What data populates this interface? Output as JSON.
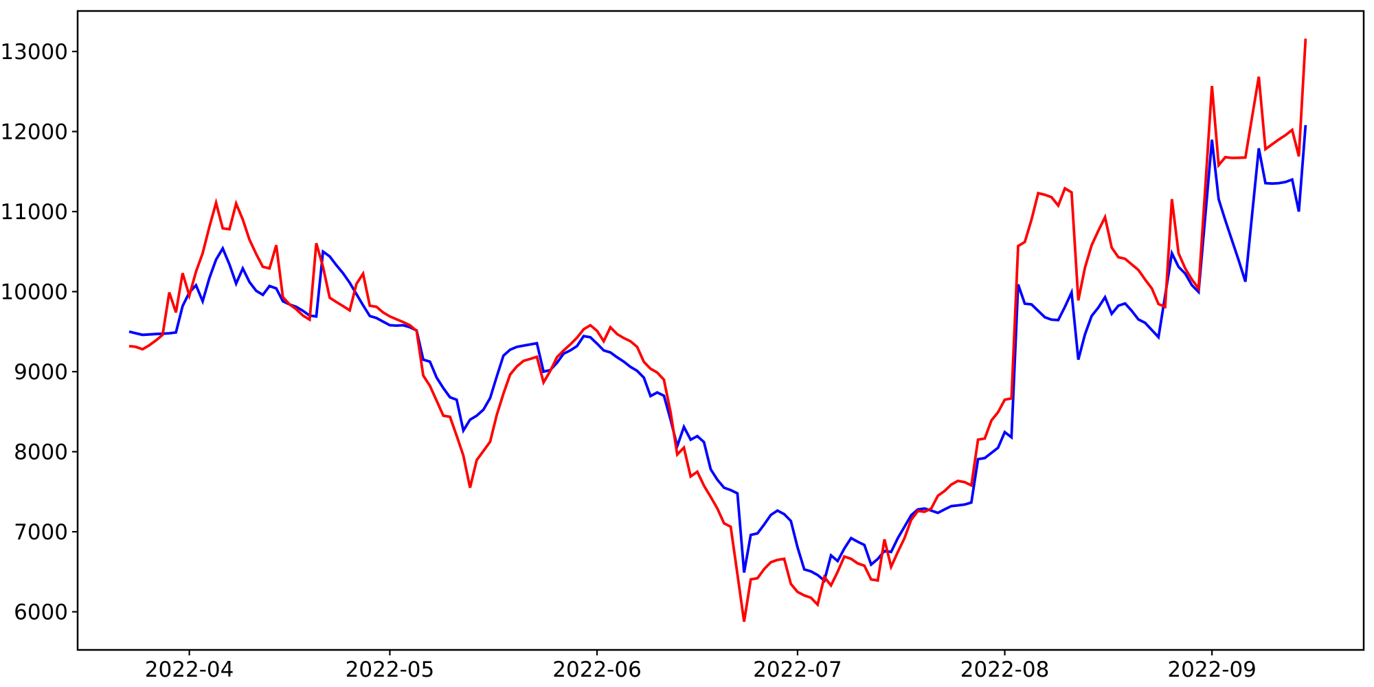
{
  "figure_title": "",
  "chart_data": {
    "type": "line",
    "title": "",
    "xlabel": "",
    "ylabel": "",
    "grid": false,
    "legend": null,
    "background_color": "#ffffff",
    "spine_color": "#000000",
    "tick_label_color": "#000000",
    "x_start_date": "2022-03-23",
    "x_step_days": 1,
    "n_points": 177,
    "x_ticks": [
      {
        "label": "2022-04",
        "day_index": 9
      },
      {
        "label": "2022-05",
        "day_index": 39
      },
      {
        "label": "2022-06",
        "day_index": 70
      },
      {
        "label": "2022-07",
        "day_index": 100
      },
      {
        "label": "2022-08",
        "day_index": 131
      },
      {
        "label": "2022-09",
        "day_index": 162
      }
    ],
    "y_ticks": [
      6000,
      7000,
      8000,
      9000,
      10000,
      11000,
      12000,
      13000
    ],
    "ylim": [
      5524,
      13506
    ],
    "xlim_days": [
      -7.71,
      184.7
    ],
    "series": [
      {
        "name": "blue-series",
        "color": "#0000ff",
        "values": [
          9500,
          9480,
          9460,
          9465,
          9470,
          9475,
          9480,
          9490,
          9820,
          9990,
          10080,
          9880,
          10170,
          10400,
          10540,
          10340,
          10100,
          10290,
          10120,
          10010,
          9960,
          10070,
          10040,
          9880,
          9840,
          9810,
          9760,
          9700,
          9690,
          10500,
          10440,
          10330,
          10230,
          10110,
          9970,
          9830,
          9695,
          9670,
          9625,
          9580,
          9575,
          9580,
          9555,
          9515,
          9150,
          9125,
          8925,
          8795,
          8680,
          8650,
          8265,
          8400,
          8450,
          8525,
          8670,
          8940,
          9200,
          9275,
          9310,
          9325,
          9340,
          9355,
          9000,
          9020,
          9110,
          9225,
          9265,
          9320,
          9445,
          9430,
          9350,
          9265,
          9240,
          9180,
          9125,
          9060,
          9010,
          8925,
          8695,
          8740,
          8700,
          8400,
          8070,
          8310,
          8150,
          8195,
          8120,
          7780,
          7650,
          7550,
          7520,
          7480,
          6490,
          6960,
          6980,
          7090,
          7210,
          7265,
          7220,
          7135,
          6805,
          6530,
          6505,
          6460,
          6390,
          6705,
          6635,
          6790,
          6920,
          6875,
          6835,
          6590,
          6660,
          6760,
          6748,
          6920,
          7063,
          7206,
          7278,
          7290,
          7265,
          7235,
          7280,
          7320,
          7330,
          7340,
          7365,
          7907,
          7920,
          7985,
          8050,
          8245,
          8180,
          10090,
          9850,
          9840,
          9760,
          9680,
          9650,
          9645,
          9810,
          9990,
          9150,
          9466,
          9695,
          9800,
          9930,
          9723,
          9824,
          9852,
          9760,
          9652,
          9610,
          9520,
          9432,
          9950,
          10480,
          10310,
          10225,
          10080,
          9996,
          10940,
          11898,
          11154,
          10890,
          10640,
          10390,
          10124,
          10957,
          11790,
          11355,
          11350,
          11355,
          11370,
          11400,
          11000,
          12080
        ]
      },
      {
        "name": "red-series",
        "color": "#ff0000",
        "values": [
          9320,
          9310,
          9280,
          9330,
          9390,
          9460,
          9990,
          9740,
          10230,
          9950,
          10250,
          10480,
          10810,
          11110,
          10790,
          10780,
          11100,
          10900,
          10650,
          10470,
          10310,
          10290,
          10580,
          9930,
          9840,
          9780,
          9700,
          9650,
          10605,
          10310,
          9924,
          9870,
          9820,
          9766,
          10095,
          10225,
          9824,
          9810,
          9740,
          9690,
          9655,
          9620,
          9580,
          9510,
          8951,
          8822,
          8637,
          8451,
          8436,
          8200,
          7951,
          7550,
          7895,
          8010,
          8125,
          8460,
          8725,
          8965,
          9065,
          9135,
          9160,
          9185,
          8865,
          9010,
          9180,
          9265,
          9340,
          9425,
          9530,
          9580,
          9510,
          9380,
          9555,
          9470,
          9420,
          9380,
          9310,
          9123,
          9037,
          8990,
          8900,
          8494,
          7965,
          8051,
          7690,
          7750,
          7575,
          7435,
          7290,
          7106,
          7063,
          6470,
          5876,
          6405,
          6420,
          6534,
          6619,
          6648,
          6662,
          6348,
          6248,
          6205,
          6176,
          6090,
          6434,
          6330,
          6500,
          6690,
          6662,
          6605,
          6576,
          6405,
          6391,
          6905,
          6562,
          6748,
          6920,
          7149,
          7260,
          7250,
          7290,
          7450,
          7510,
          7590,
          7635,
          7620,
          7580,
          8150,
          8165,
          8390,
          8494,
          8650,
          8665,
          10570,
          10620,
          10900,
          11230,
          11210,
          11180,
          11075,
          11290,
          11240,
          9890,
          10300,
          10580,
          10760,
          10930,
          10550,
          10430,
          10410,
          10340,
          10270,
          10150,
          10040,
          9845,
          9810,
          11155,
          10480,
          10290,
          10150,
          10040,
          11300,
          12570,
          11580,
          11680,
          11670,
          11672,
          11675,
          12180,
          12685,
          11780,
          11840,
          11900,
          11955,
          12020,
          11690,
          13160
        ]
      }
    ],
    "layout_hints": {
      "draw_order": [
        "blue-series",
        "red-series"
      ],
      "line_width": 3.8,
      "tick_length": 8,
      "tick_width": 2.2,
      "spine_width": 2.5
    }
  }
}
